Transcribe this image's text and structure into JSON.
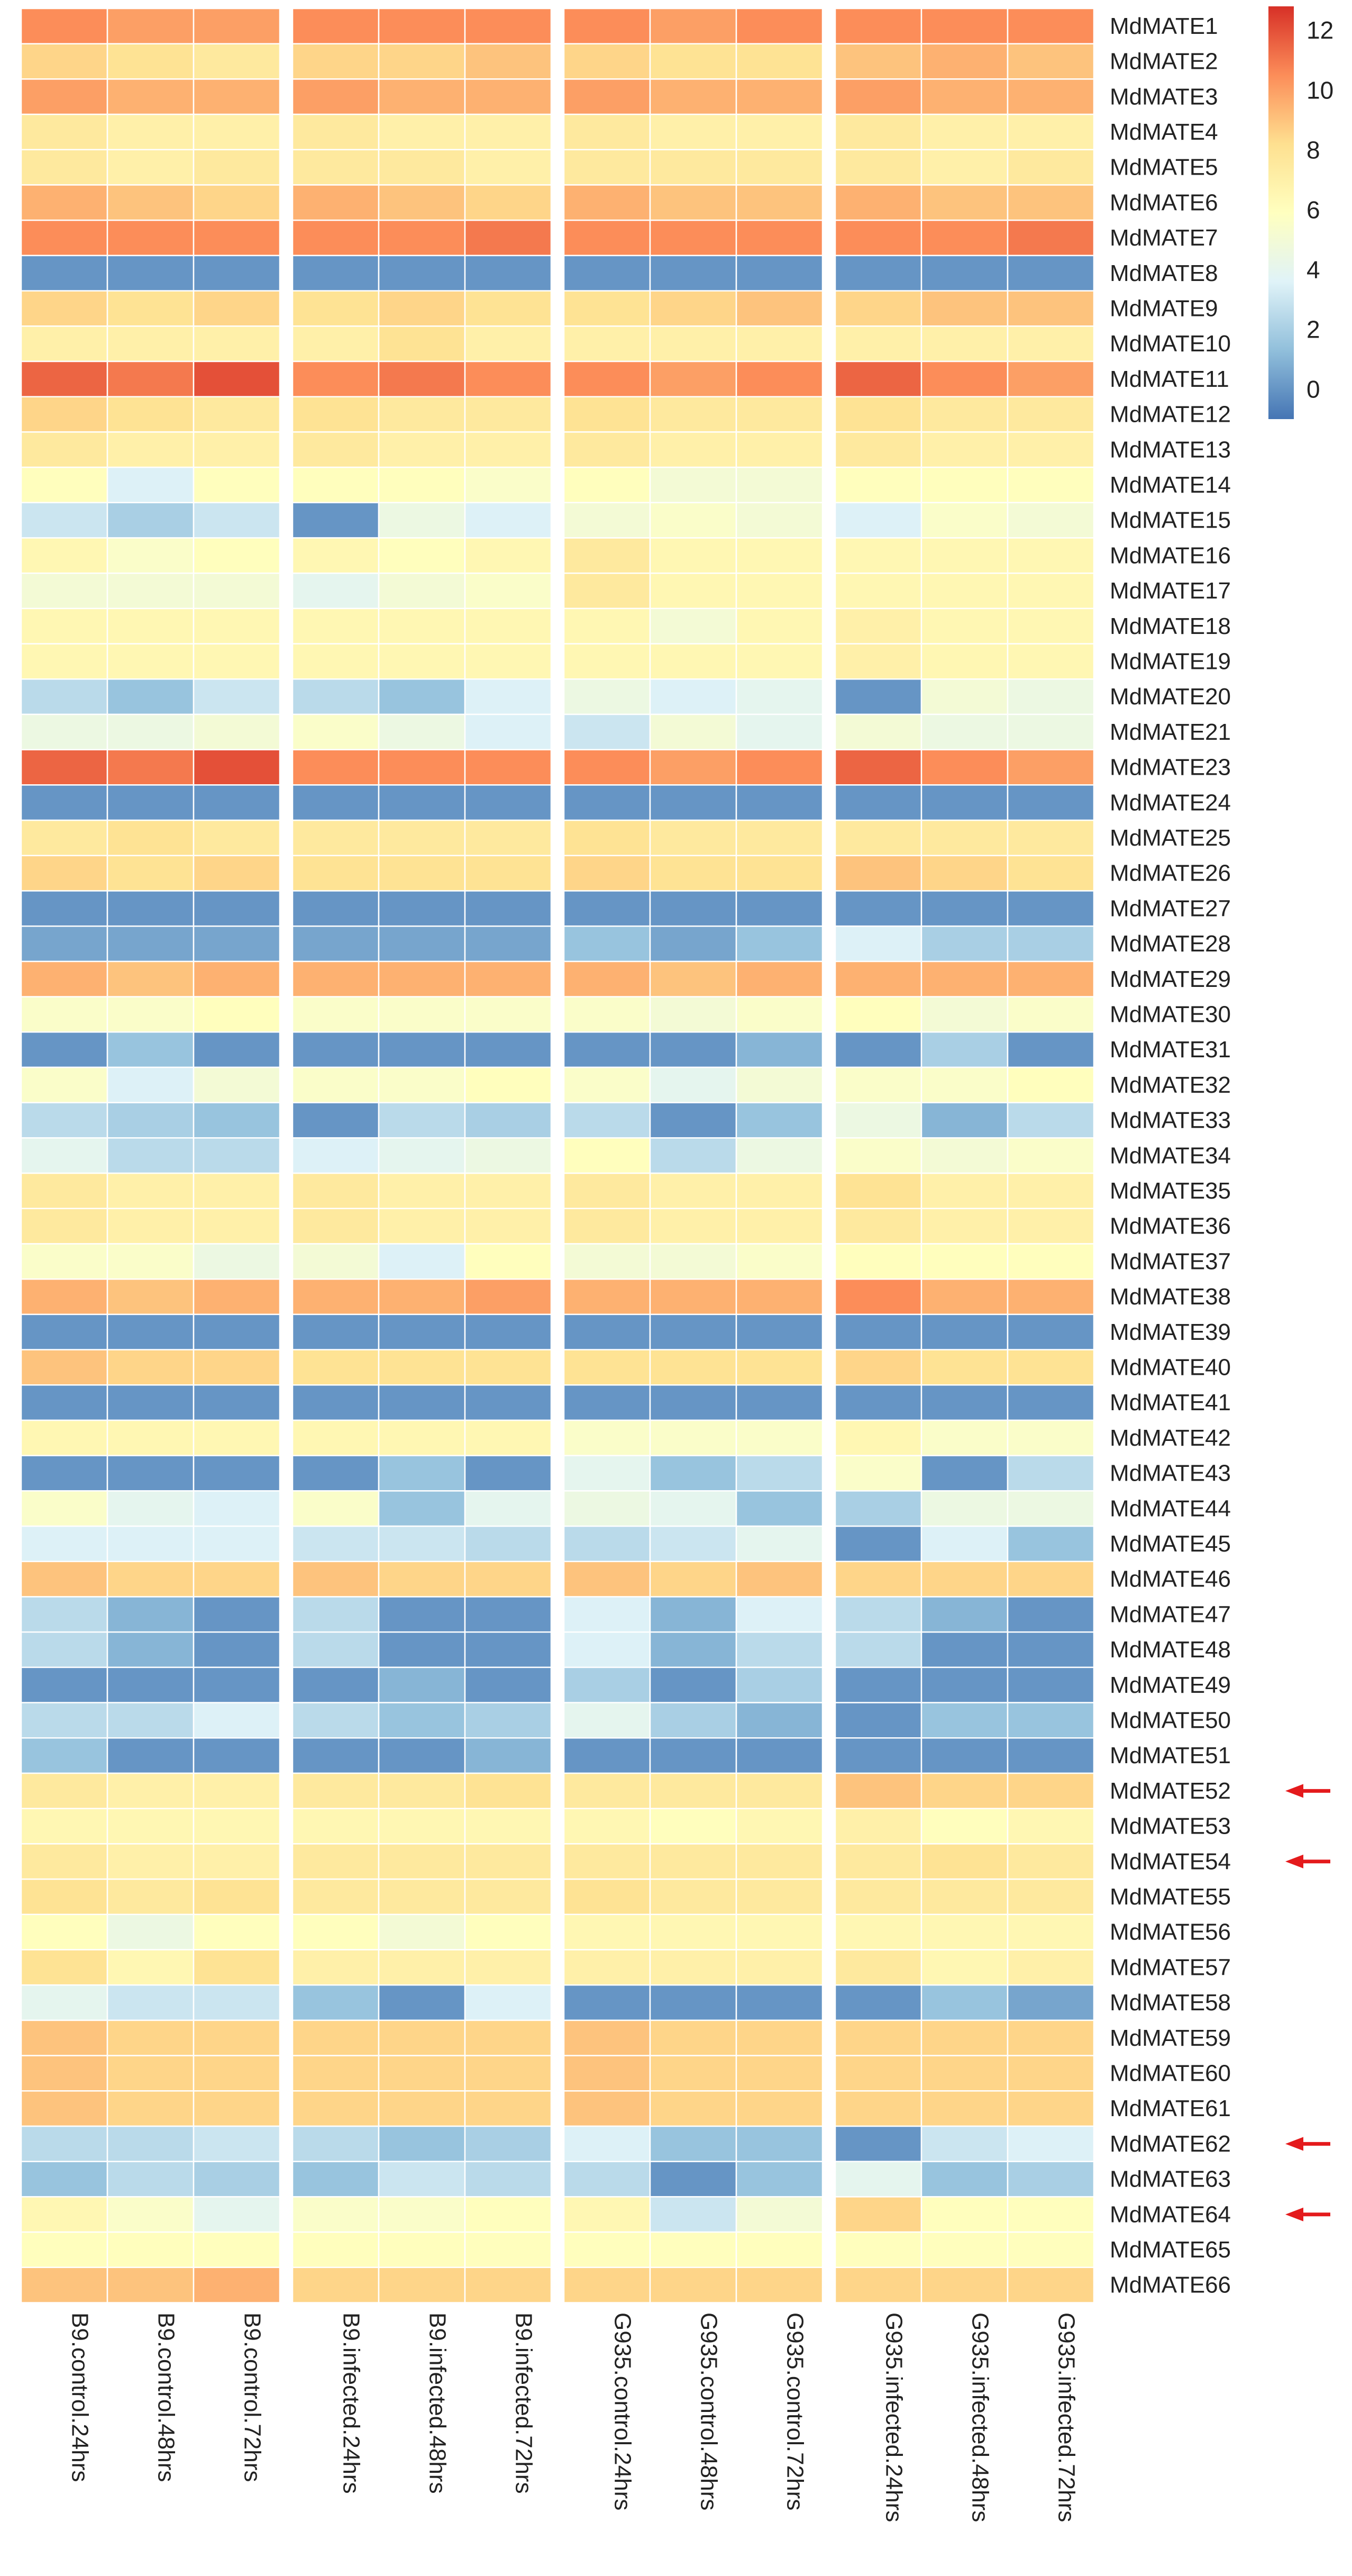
{
  "chart_data": {
    "type": "heatmap",
    "title": "",
    "xlabel": "",
    "ylabel": "",
    "columns": [
      "B9.control.24hrs",
      "B9.control.48hrs",
      "B9.control.72hrs",
      "B9.infected.24hrs",
      "B9.infected.48hrs",
      "B9.infected.72hrs",
      "G935.control.24hrs",
      "G935.control.48hrs",
      "G935.control.72hrs",
      "G935.infected.24hrs",
      "G935.infected.48hrs",
      "G935.infected.72hrs"
    ],
    "column_groups": [
      3,
      3,
      3,
      3
    ],
    "rows": [
      "MdMATE1",
      "MdMATE2",
      "MdMATE3",
      "MdMATE4",
      "MdMATE5",
      "MdMATE6",
      "MdMATE7",
      "MdMATE8",
      "MdMATE9",
      "MdMATE10",
      "MdMATE11",
      "MdMATE12",
      "MdMATE13",
      "MdMATE14",
      "MdMATE15",
      "MdMATE16",
      "MdMATE17",
      "MdMATE18",
      "MdMATE19",
      "MdMATE20",
      "MdMATE21",
      "MdMATE23",
      "MdMATE24",
      "MdMATE25",
      "MdMATE26",
      "MdMATE27",
      "MdMATE28",
      "MdMATE29",
      "MdMATE30",
      "MdMATE31",
      "MdMATE32",
      "MdMATE33",
      "MdMATE34",
      "MdMATE35",
      "MdMATE36",
      "MdMATE37",
      "MdMATE38",
      "MdMATE39",
      "MdMATE40",
      "MdMATE41",
      "MdMATE42",
      "MdMATE43",
      "MdMATE44",
      "MdMATE45",
      "MdMATE46",
      "MdMATE47",
      "MdMATE48",
      "MdMATE49",
      "MdMATE50",
      "MdMATE51",
      "MdMATE52",
      "MdMATE53",
      "MdMATE54",
      "MdMATE55",
      "MdMATE56",
      "MdMATE57",
      "MdMATE58",
      "MdMATE59",
      "MdMATE60",
      "MdMATE61",
      "MdMATE62",
      "MdMATE63",
      "MdMATE64",
      "MdMATE65",
      "MdMATE66"
    ],
    "values": [
      [
        10.5,
        10,
        10,
        10.5,
        10.5,
        10.5,
        10.5,
        10,
        10.5,
        10.5,
        10.5,
        10.5
      ],
      [
        8.5,
        8,
        7.5,
        8.5,
        8.5,
        9,
        8.5,
        8,
        8,
        9,
        9.5,
        9
      ],
      [
        10,
        9.5,
        9.5,
        10,
        9.5,
        9.5,
        10,
        9.5,
        9.5,
        10,
        9.5,
        9.5
      ],
      [
        7.5,
        7,
        7,
        7.5,
        7,
        7,
        7.5,
        7,
        7,
        7.5,
        7,
        7
      ],
      [
        7.5,
        7,
        7.5,
        7.5,
        7.5,
        7,
        7.5,
        7.5,
        7.5,
        7.5,
        7,
        7.5
      ],
      [
        9.5,
        9,
        8.5,
        9.5,
        9,
        8.5,
        9.5,
        9,
        9,
        9.5,
        9,
        9
      ],
      [
        10.5,
        10.5,
        10.5,
        10.5,
        10.5,
        11,
        10.5,
        10.5,
        10.5,
        10.5,
        10.5,
        11
      ],
      [
        0,
        0,
        0,
        0,
        0,
        0,
        0,
        0,
        0,
        0,
        0,
        0
      ],
      [
        8.5,
        8,
        8.5,
        8,
        8.5,
        8,
        8,
        8.5,
        9,
        8.5,
        9,
        9
      ],
      [
        7,
        7,
        7,
        7,
        8,
        7,
        7,
        7,
        7,
        7,
        7,
        7
      ],
      [
        11.5,
        11,
        12,
        10.5,
        11,
        10.5,
        10.5,
        10,
        10.5,
        11.5,
        10.5,
        10
      ],
      [
        8.5,
        8,
        7.5,
        8,
        7.5,
        7.5,
        8,
        7.5,
        7.5,
        8,
        7.5,
        7.5
      ],
      [
        7.5,
        7,
        7,
        7.5,
        7,
        7,
        7.5,
        7,
        7,
        7.5,
        7,
        7
      ],
      [
        6,
        3.5,
        6,
        6,
        6,
        5.5,
        6,
        5,
        5,
        6,
        6,
        6
      ],
      [
        3,
        2,
        3,
        0,
        4.5,
        3.5,
        5,
        5.5,
        5,
        3.5,
        5.5,
        5
      ],
      [
        6.5,
        5.5,
        6,
        6.5,
        6,
        6.5,
        7.5,
        6.5,
        6.5,
        6.5,
        6.5,
        6.5
      ],
      [
        5,
        5,
        5,
        4,
        5,
        5.5,
        7.5,
        6.5,
        6.5,
        6.5,
        6.5,
        6.5
      ],
      [
        6.5,
        6.5,
        6.5,
        6.5,
        6.5,
        6.5,
        6.5,
        5,
        6.5,
        7,
        6.5,
        6.5
      ],
      [
        6.5,
        6.5,
        6.5,
        6.5,
        6.5,
        6.5,
        6.5,
        6.5,
        6.5,
        7,
        6.5,
        6.5
      ],
      [
        2.5,
        1.5,
        3,
        2.5,
        1.5,
        3.5,
        4.5,
        3.5,
        4,
        0,
        5,
        4.5
      ],
      [
        4.5,
        4.5,
        5,
        5.5,
        4.5,
        3.5,
        3,
        5,
        4,
        5,
        4.5,
        4.5
      ],
      [
        11.5,
        11,
        12,
        10.5,
        10.5,
        10.5,
        10.5,
        10,
        10.5,
        11.5,
        10.5,
        10
      ],
      [
        0,
        0,
        0,
        0,
        0,
        0,
        0,
        0,
        0,
        0,
        0,
        0
      ],
      [
        7.5,
        8,
        7.5,
        7.5,
        7.5,
        7.5,
        8,
        7.5,
        7.5,
        7.5,
        7.5,
        7.5
      ],
      [
        8.5,
        8,
        8.5,
        8,
        8,
        8,
        8.5,
        8,
        8,
        9,
        8.5,
        8
      ],
      [
        0,
        0,
        0,
        0,
        0,
        0,
        0,
        0,
        0,
        0,
        0,
        0
      ],
      [
        0.5,
        0.5,
        0.5,
        0.5,
        0.5,
        0.5,
        1.5,
        0.5,
        1.5,
        3.5,
        2,
        2
      ],
      [
        9.5,
        9,
        9.5,
        9.5,
        9.5,
        9.5,
        9.5,
        9,
        9.5,
        9.5,
        9.5,
        9.5
      ],
      [
        5.5,
        5.5,
        6,
        5.5,
        5.5,
        5.5,
        5.5,
        5,
        5.5,
        6,
        5,
        5.5
      ],
      [
        0,
        1.5,
        0,
        0,
        0,
        0,
        0,
        0,
        1,
        0,
        2,
        0
      ],
      [
        5.5,
        3.5,
        5,
        5.5,
        5.5,
        6,
        5.5,
        4,
        5,
        5.5,
        5.5,
        6
      ],
      [
        2.5,
        2,
        1.5,
        0,
        2.5,
        2,
        2.5,
        0,
        1.5,
        4.5,
        1,
        2.5
      ],
      [
        4,
        2.5,
        2.5,
        3.5,
        4,
        4.5,
        6,
        2.5,
        4.5,
        5.5,
        5,
        5.5
      ],
      [
        7.5,
        7,
        7,
        7.5,
        7,
        7,
        7.5,
        7,
        7,
        8,
        7,
        7
      ],
      [
        7.5,
        7,
        7,
        7.5,
        7,
        7,
        7.5,
        7,
        7,
        7.5,
        7,
        7
      ],
      [
        5.5,
        5.5,
        4.5,
        5,
        3.5,
        6,
        5,
        5,
        5.5,
        6,
        6,
        6
      ],
      [
        9.5,
        9,
        9.5,
        9.5,
        9.5,
        10,
        9.5,
        9.5,
        9.5,
        10.5,
        9.5,
        9.5
      ],
      [
        0,
        0,
        0,
        0,
        0,
        0,
        0,
        0,
        0,
        0,
        0,
        0
      ],
      [
        9,
        8.5,
        8.5,
        8,
        8,
        8,
        8,
        8,
        8,
        8.5,
        8,
        8
      ],
      [
        0,
        0,
        0,
        0,
        0,
        0,
        0,
        0,
        0,
        0,
        0,
        0
      ],
      [
        6.5,
        6.5,
        6.5,
        6.5,
        6.5,
        6.5,
        5.5,
        5.5,
        5.5,
        6.5,
        5.5,
        5.5
      ],
      [
        0,
        0,
        0,
        0,
        1.5,
        0,
        4,
        1.5,
        2.5,
        5.5,
        0,
        2.5
      ],
      [
        5.5,
        4,
        3.5,
        5.5,
        1.5,
        4,
        4.5,
        4,
        1.5,
        2,
        4.5,
        4.5
      ],
      [
        3.5,
        3.5,
        3.5,
        3,
        3,
        2.5,
        2.5,
        3,
        4,
        0,
        3.5,
        1.5
      ],
      [
        9,
        8.5,
        8.5,
        9,
        8.5,
        8.5,
        9,
        8.5,
        9,
        8.5,
        8.5,
        8.5
      ],
      [
        2.5,
        1,
        0,
        2.5,
        0,
        0,
        3.5,
        1,
        3.5,
        2.5,
        1,
        0
      ],
      [
        2.5,
        1,
        0,
        2.5,
        0,
        0,
        3.5,
        1,
        2.5,
        2.5,
        0,
        0
      ],
      [
        0,
        0,
        0,
        0,
        1,
        0,
        2,
        0,
        2,
        0,
        0,
        0
      ],
      [
        2.5,
        2.5,
        3.5,
        2.5,
        1.5,
        2,
        4,
        2,
        1,
        0,
        1.5,
        1.5
      ],
      [
        1.5,
        0,
        0,
        0,
        0,
        1,
        0,
        0,
        0,
        0,
        0,
        0
      ],
      [
        7.5,
        7,
        7,
        7.5,
        7.5,
        8,
        7.5,
        7.5,
        7.5,
        9,
        8.5,
        8.5
      ],
      [
        6.5,
        6.5,
        6.5,
        6.5,
        6.5,
        6.5,
        6.5,
        6,
        6.5,
        7,
        6,
        6.5
      ],
      [
        7.5,
        7,
        7,
        7.5,
        7.5,
        7.5,
        7.5,
        7.5,
        7.5,
        7.5,
        8,
        7.5
      ],
      [
        8,
        7.5,
        8,
        7.5,
        7.5,
        7.5,
        8,
        7.5,
        7.5,
        7.5,
        7.5,
        7.5
      ],
      [
        6,
        4.5,
        6,
        6,
        5,
        6,
        6.5,
        6.5,
        6.5,
        6.5,
        6.5,
        6.5
      ],
      [
        8,
        6.5,
        8,
        7,
        7,
        7,
        7,
        7,
        7,
        7.5,
        6.5,
        7
      ],
      [
        4,
        3,
        3,
        1.5,
        0,
        3.5,
        0,
        0,
        0,
        0,
        1.5,
        0.5
      ],
      [
        9,
        8.5,
        8.5,
        8.5,
        8.5,
        8.5,
        9,
        8.5,
        8.5,
        8.5,
        8.5,
        8.5
      ],
      [
        9,
        8.5,
        8.5,
        8.5,
        8.5,
        8.5,
        9,
        8.5,
        8.5,
        8.5,
        8.5,
        8.5
      ],
      [
        9,
        8.5,
        8.5,
        8.5,
        8.5,
        8.5,
        9,
        8.5,
        8.5,
        8.5,
        8.5,
        8.5
      ],
      [
        2.5,
        2.5,
        3,
        2.5,
        1.5,
        2,
        3.5,
        1.5,
        1.5,
        0,
        3,
        3.5
      ],
      [
        1.5,
        2.5,
        2,
        1.5,
        3,
        2.5,
        2.5,
        0,
        1.5,
        4,
        1.5,
        2
      ],
      [
        6.5,
        5.5,
        4,
        5.5,
        5.5,
        6,
        6.5,
        3,
        5,
        8.5,
        6,
        6
      ],
      [
        6,
        6,
        6,
        6,
        6,
        6,
        6,
        6,
        6,
        6,
        6,
        6
      ],
      [
        9,
        9,
        9.5,
        8.5,
        8.5,
        8.5,
        8.5,
        8.5,
        8.5,
        8.5,
        8.5,
        8.5
      ]
    ],
    "highlighted_rows": [
      "MdMATE52",
      "MdMATE54",
      "MdMATE62",
      "MdMATE64"
    ],
    "colorbar": {
      "ticks": [
        "12",
        "10",
        "8",
        "6",
        "4",
        "2",
        "0"
      ],
      "tick_values": [
        12,
        10,
        8,
        6,
        4,
        2,
        0
      ],
      "range": [
        -1,
        12.8
      ],
      "colors": [
        "#4575b4",
        "#91bfdb",
        "#e0f3f8",
        "#ffffbf",
        "#fee090",
        "#fc8d59",
        "#d73027"
      ]
    },
    "grid_color": "#ffffff",
    "arrow_color": "#e41a1c"
  }
}
